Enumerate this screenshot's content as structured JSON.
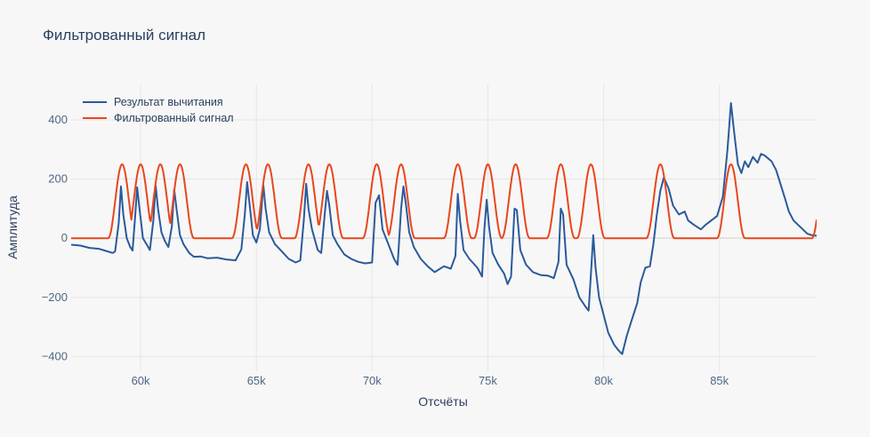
{
  "chart_data": {
    "type": "line",
    "title": "Фильтрованный сигнал",
    "xlabel": "Отсчёты",
    "ylabel": "Амплитуда",
    "xlim": [
      57000,
      89200
    ],
    "ylim": [
      -450,
      520
    ],
    "xticks": [
      60000,
      65000,
      70000,
      75000,
      80000,
      85000
    ],
    "xtick_labels": [
      "60k",
      "65k",
      "70k",
      "75k",
      "80k",
      "85k"
    ],
    "yticks": [
      -400,
      -200,
      0,
      200,
      400
    ],
    "ytick_labels": [
      "−400",
      "−200",
      "0",
      "200",
      "400"
    ],
    "grid": true,
    "legend_position": "top-left",
    "series": [
      {
        "name": "Результат вычитания",
        "color": "#2b5a9b",
        "points": [
          [
            57000,
            -22
          ],
          [
            57400,
            -25
          ],
          [
            57800,
            -33
          ],
          [
            58200,
            -36
          ],
          [
            58500,
            -43
          ],
          [
            58800,
            -50
          ],
          [
            58900,
            -45
          ],
          [
            59050,
            50
          ],
          [
            59150,
            175
          ],
          [
            59250,
            80
          ],
          [
            59400,
            0
          ],
          [
            59550,
            -30
          ],
          [
            59650,
            -42
          ],
          [
            59750,
            60
          ],
          [
            59850,
            172
          ],
          [
            59950,
            100
          ],
          [
            60100,
            0
          ],
          [
            60250,
            -20
          ],
          [
            60400,
            -40
          ],
          [
            60550,
            60
          ],
          [
            60650,
            178
          ],
          [
            60750,
            100
          ],
          [
            60900,
            20
          ],
          [
            61050,
            -10
          ],
          [
            61200,
            -30
          ],
          [
            61350,
            40
          ],
          [
            61450,
            165
          ],
          [
            61550,
            100
          ],
          [
            61700,
            10
          ],
          [
            61850,
            -20
          ],
          [
            62100,
            -50
          ],
          [
            62300,
            -63
          ],
          [
            62600,
            -62
          ],
          [
            62900,
            -68
          ],
          [
            63300,
            -66
          ],
          [
            63700,
            -72
          ],
          [
            64100,
            -75
          ],
          [
            64350,
            -38
          ],
          [
            64500,
            80
          ],
          [
            64600,
            190
          ],
          [
            64700,
            120
          ],
          [
            64850,
            10
          ],
          [
            65000,
            -15
          ],
          [
            65150,
            30
          ],
          [
            65300,
            180
          ],
          [
            65400,
            100
          ],
          [
            65550,
            20
          ],
          [
            65800,
            -20
          ],
          [
            66100,
            -45
          ],
          [
            66400,
            -70
          ],
          [
            66700,
            -82
          ],
          [
            66900,
            -75
          ],
          [
            67050,
            60
          ],
          [
            67150,
            184
          ],
          [
            67250,
            100
          ],
          [
            67400,
            30
          ],
          [
            67650,
            -40
          ],
          [
            67800,
            -50
          ],
          [
            67950,
            80
          ],
          [
            68050,
            160
          ],
          [
            68150,
            110
          ],
          [
            68300,
            10
          ],
          [
            68500,
            -20
          ],
          [
            68800,
            -55
          ],
          [
            69100,
            -70
          ],
          [
            69400,
            -80
          ],
          [
            69700,
            -85
          ],
          [
            70000,
            -82
          ],
          [
            70150,
            120
          ],
          [
            70300,
            145
          ],
          [
            70450,
            30
          ],
          [
            70700,
            -20
          ],
          [
            70950,
            -70
          ],
          [
            71100,
            -90
          ],
          [
            71250,
            100
          ],
          [
            71350,
            175
          ],
          [
            71450,
            120
          ],
          [
            71600,
            20
          ],
          [
            71800,
            -30
          ],
          [
            72100,
            -70
          ],
          [
            72400,
            -95
          ],
          [
            72700,
            -115
          ],
          [
            73100,
            -95
          ],
          [
            73400,
            -103
          ],
          [
            73600,
            -60
          ],
          [
            73700,
            150
          ],
          [
            73800,
            60
          ],
          [
            73950,
            -40
          ],
          [
            74200,
            -70
          ],
          [
            74550,
            -100
          ],
          [
            74750,
            -130
          ],
          [
            74850,
            30
          ],
          [
            74950,
            130
          ],
          [
            75050,
            40
          ],
          [
            75200,
            -50
          ],
          [
            75450,
            -90
          ],
          [
            75700,
            -120
          ],
          [
            75850,
            -155
          ],
          [
            76000,
            -130
          ],
          [
            76150,
            100
          ],
          [
            76250,
            95
          ],
          [
            76400,
            -40
          ],
          [
            76650,
            -90
          ],
          [
            76950,
            -115
          ],
          [
            77300,
            -125
          ],
          [
            77600,
            -127
          ],
          [
            77850,
            -135
          ],
          [
            78050,
            -80
          ],
          [
            78150,
            100
          ],
          [
            78250,
            80
          ],
          [
            78400,
            -90
          ],
          [
            78700,
            -140
          ],
          [
            78950,
            -200
          ],
          [
            79200,
            -230
          ],
          [
            79350,
            -245
          ],
          [
            79450,
            -120
          ],
          [
            79550,
            10
          ],
          [
            79650,
            -100
          ],
          [
            79800,
            -200
          ],
          [
            80000,
            -260
          ],
          [
            80200,
            -320
          ],
          [
            80450,
            -360
          ],
          [
            80650,
            -380
          ],
          [
            80800,
            -392
          ],
          [
            81000,
            -330
          ],
          [
            81200,
            -280
          ],
          [
            81450,
            -220
          ],
          [
            81600,
            -150
          ],
          [
            81800,
            -100
          ],
          [
            82000,
            -95
          ],
          [
            82150,
            -20
          ],
          [
            82300,
            80
          ],
          [
            82450,
            160
          ],
          [
            82600,
            205
          ],
          [
            82800,
            170
          ],
          [
            83000,
            110
          ],
          [
            83250,
            80
          ],
          [
            83500,
            90
          ],
          [
            83650,
            60
          ],
          [
            83900,
            45
          ],
          [
            84200,
            30
          ],
          [
            84400,
            45
          ],
          [
            84650,
            60
          ],
          [
            84900,
            75
          ],
          [
            85150,
            140
          ],
          [
            85350,
            300
          ],
          [
            85500,
            457
          ],
          [
            85650,
            350
          ],
          [
            85800,
            250
          ],
          [
            85950,
            220
          ],
          [
            86100,
            260
          ],
          [
            86250,
            240
          ],
          [
            86450,
            275
          ],
          [
            86650,
            255
          ],
          [
            86800,
            285
          ],
          [
            86950,
            280
          ],
          [
            87100,
            270
          ],
          [
            87250,
            260
          ],
          [
            87450,
            230
          ],
          [
            87650,
            180
          ],
          [
            87850,
            130
          ],
          [
            88000,
            90
          ],
          [
            88200,
            60
          ],
          [
            88400,
            45
          ],
          [
            88600,
            30
          ],
          [
            88800,
            15
          ],
          [
            89000,
            10
          ],
          [
            89200,
            8
          ]
        ]
      },
      {
        "name": "Фильтрованный сигнал",
        "color": "#e8471c",
        "baseline": 0,
        "peak": 250,
        "pulses": [
          [
            58600,
            59800
          ],
          [
            59400,
            60600
          ],
          [
            60250,
            61450
          ],
          [
            61100,
            62300
          ],
          [
            63950,
            65150
          ],
          [
            64900,
            66100
          ],
          [
            66650,
            67850
          ],
          [
            67550,
            68750
          ],
          [
            69600,
            70800
          ],
          [
            70650,
            71850
          ],
          [
            73100,
            74300
          ],
          [
            74400,
            75600
          ],
          [
            75600,
            76800
          ],
          [
            77550,
            78750
          ],
          [
            78850,
            80050
          ],
          [
            81850,
            83050
          ],
          [
            84900,
            86100
          ],
          [
            89000,
            90200
          ]
        ]
      }
    ]
  }
}
